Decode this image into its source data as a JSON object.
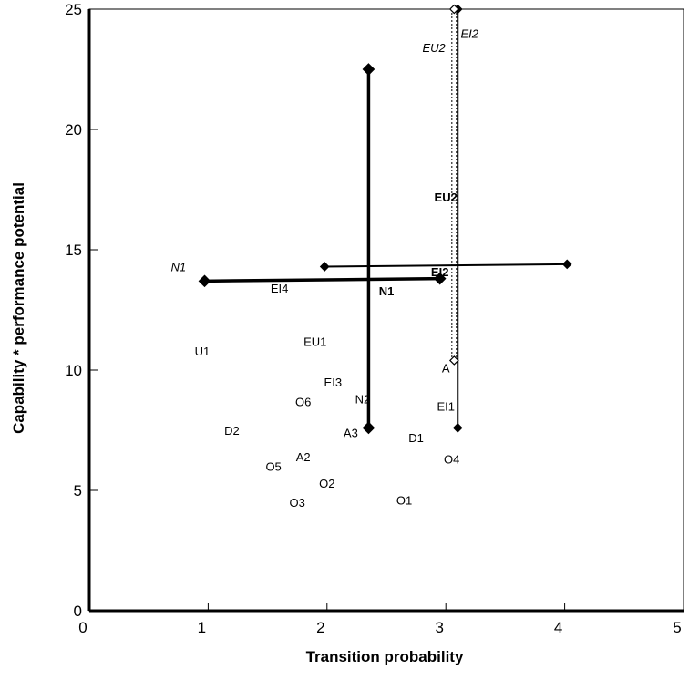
{
  "chart_data": {
    "type": "scatter",
    "title": "",
    "xlabel": "Transition probability",
    "ylabel": "Capability * performance potential",
    "xlim": [
      0,
      5
    ],
    "ylim": [
      0,
      25
    ],
    "xticks": [
      0,
      1,
      2,
      3,
      4,
      5
    ],
    "yticks": [
      0,
      5,
      10,
      15,
      20,
      25
    ],
    "grid": false,
    "points": [
      {
        "label": "U1",
        "x": 0.95,
        "y": 10.8,
        "weight": "normal",
        "style": "normal"
      },
      {
        "label": "EI4",
        "x": 1.6,
        "y": 13.4,
        "weight": "normal",
        "style": "normal"
      },
      {
        "label": "EU1",
        "x": 1.9,
        "y": 11.2,
        "weight": "normal",
        "style": "normal"
      },
      {
        "label": "D2",
        "x": 1.2,
        "y": 7.5,
        "weight": "normal",
        "style": "normal"
      },
      {
        "label": "O6",
        "x": 1.8,
        "y": 8.7,
        "weight": "normal",
        "style": "normal"
      },
      {
        "label": "EI3",
        "x": 2.05,
        "y": 9.5,
        "weight": "normal",
        "style": "normal"
      },
      {
        "label": "N2",
        "x": 2.3,
        "y": 8.8,
        "weight": "normal",
        "style": "normal"
      },
      {
        "label": "A3",
        "x": 2.2,
        "y": 7.4,
        "weight": "normal",
        "style": "normal"
      },
      {
        "label": "A2",
        "x": 1.8,
        "y": 6.4,
        "weight": "normal",
        "style": "normal"
      },
      {
        "label": "O5",
        "x": 1.55,
        "y": 6.0,
        "weight": "normal",
        "style": "normal"
      },
      {
        "label": "O2",
        "x": 2.0,
        "y": 5.3,
        "weight": "normal",
        "style": "normal"
      },
      {
        "label": "O3",
        "x": 1.75,
        "y": 4.5,
        "weight": "normal",
        "style": "normal"
      },
      {
        "label": "O1",
        "x": 2.65,
        "y": 4.6,
        "weight": "normal",
        "style": "normal"
      },
      {
        "label": "D1",
        "x": 2.75,
        "y": 7.2,
        "weight": "normal",
        "style": "normal"
      },
      {
        "label": "O4",
        "x": 3.05,
        "y": 6.3,
        "weight": "normal",
        "style": "normal"
      },
      {
        "label": "EI1",
        "x": 3.0,
        "y": 8.5,
        "weight": "normal",
        "style": "normal"
      },
      {
        "label": "A",
        "x": 3.0,
        "y": 10.1,
        "weight": "normal",
        "style": "normal"
      },
      {
        "label": "N1",
        "x": 2.5,
        "y": 13.3,
        "weight": "bold",
        "style": "normal"
      },
      {
        "label": "EI2",
        "x": 2.95,
        "y": 14.1,
        "weight": "bold",
        "style": "normal"
      },
      {
        "label": "EU2",
        "x": 3.0,
        "y": 17.2,
        "weight": "bold",
        "style": "normal"
      },
      {
        "label": "N1",
        "x": 0.75,
        "y": 14.3,
        "weight": "normal",
        "style": "italic"
      },
      {
        "label": "EU2",
        "x": 2.9,
        "y": 23.4,
        "weight": "normal",
        "style": "italic"
      },
      {
        "label": "EI2",
        "x": 3.2,
        "y": 24.0,
        "weight": "normal",
        "style": "italic"
      }
    ],
    "ranges": [
      {
        "id": "N1-transition",
        "x1": 0.97,
        "y1": 13.7,
        "x2": 2.95,
        "y2": 13.8,
        "stroke": "thick",
        "dashed": false,
        "marker": "filled-diamond"
      },
      {
        "id": "N1-capability",
        "x1": 2.35,
        "y1": 22.5,
        "x2": 2.35,
        "y2": 7.6,
        "stroke": "thick",
        "dashed": false,
        "marker": "filled-diamond"
      },
      {
        "id": "EI2-transition",
        "x1": 1.98,
        "y1": 14.3,
        "x2": 4.02,
        "y2": 14.4,
        "stroke": "thin",
        "dashed": false,
        "marker": "filled-diamond"
      },
      {
        "id": "EI2-capability",
        "x1": 3.1,
        "y1": 25.0,
        "x2": 3.1,
        "y2": 7.6,
        "stroke": "thin",
        "dashed": false,
        "marker": "filled-diamond"
      },
      {
        "id": "EU2-capability",
        "x1": 3.07,
        "y1": 25.0,
        "x2": 3.07,
        "y2": 10.4,
        "stroke": "thin",
        "dashed": true,
        "marker": "open-diamond"
      }
    ]
  }
}
